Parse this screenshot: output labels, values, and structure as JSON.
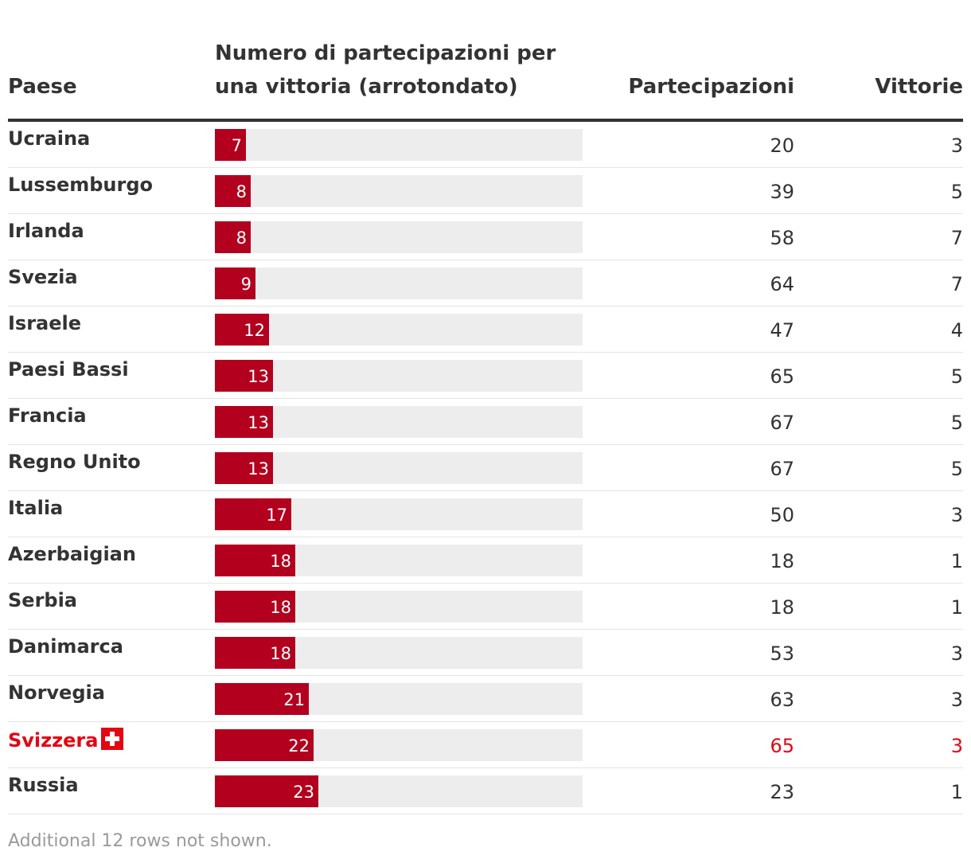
{
  "headers": {
    "country": "Paese",
    "ratio": "Numero di partecipazioni per una vittoria (arrotondato)",
    "participations": "Partecipazioni",
    "wins": "Vittorie"
  },
  "footnote": "Additional 12 rows not shown.",
  "colors": {
    "bar": "#b2001e",
    "track": "#ededed",
    "highlight": "#e30613"
  },
  "chart_data": {
    "type": "table",
    "columns": [
      "Paese",
      "Numero di partecipazioni per una vittoria (arrotondato)",
      "Partecipazioni",
      "Vittorie"
    ],
    "bar_scale_max": 82,
    "rows": [
      {
        "country": "Ucraina",
        "ratio": 7,
        "participations": 20,
        "wins": 3
      },
      {
        "country": "Lussemburgo",
        "ratio": 8,
        "participations": 39,
        "wins": 5
      },
      {
        "country": "Irlanda",
        "ratio": 8,
        "participations": 58,
        "wins": 7
      },
      {
        "country": "Svezia",
        "ratio": 9,
        "participations": 64,
        "wins": 7
      },
      {
        "country": "Israele",
        "ratio": 12,
        "participations": 47,
        "wins": 4
      },
      {
        "country": "Paesi Bassi",
        "ratio": 13,
        "participations": 65,
        "wins": 5
      },
      {
        "country": "Francia",
        "ratio": 13,
        "participations": 67,
        "wins": 5
      },
      {
        "country": "Regno Unito",
        "ratio": 13,
        "participations": 67,
        "wins": 5
      },
      {
        "country": "Italia",
        "ratio": 17,
        "participations": 50,
        "wins": 3
      },
      {
        "country": "Azerbaigian",
        "ratio": 18,
        "participations": 18,
        "wins": 1
      },
      {
        "country": "Serbia",
        "ratio": 18,
        "participations": 18,
        "wins": 1
      },
      {
        "country": "Danimarca",
        "ratio": 18,
        "participations": 53,
        "wins": 3
      },
      {
        "country": "Norvegia",
        "ratio": 21,
        "participations": 63,
        "wins": 3
      },
      {
        "country": "Svizzera",
        "ratio": 22,
        "participations": 65,
        "wins": 3,
        "highlight": true,
        "flag": "swiss-flag-icon"
      },
      {
        "country": "Russia",
        "ratio": 23,
        "participations": 23,
        "wins": 1
      }
    ]
  }
}
